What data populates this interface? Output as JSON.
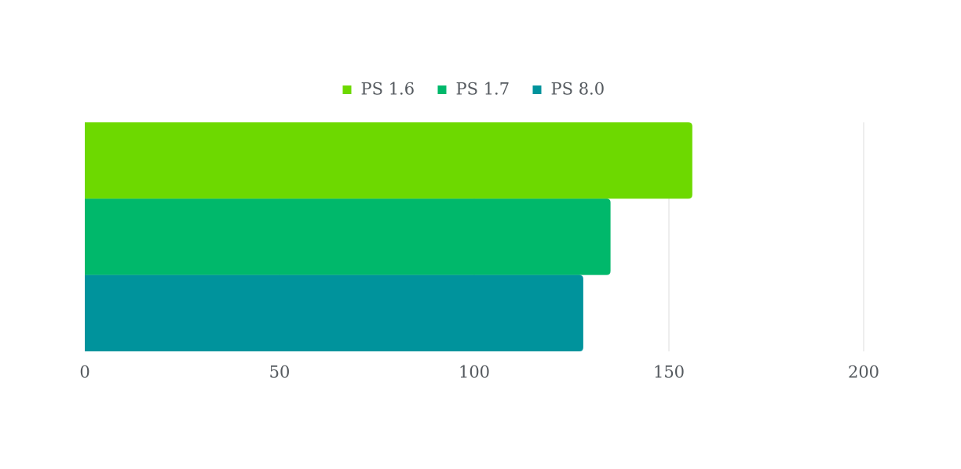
{
  "chart_data": {
    "type": "hbar",
    "categories": [
      null
    ],
    "series": [
      {
        "name": "PS 1.6",
        "color": "#6dd900",
        "values": [
          156
        ]
      },
      {
        "name": "PS 1.7",
        "color": "#00b86b",
        "values": [
          135
        ]
      },
      {
        "name": "PS 8.0",
        "color": "#00939c",
        "values": [
          128
        ]
      }
    ],
    "xlim": [
      0,
      200
    ],
    "xticks": [
      0,
      50,
      100,
      150,
      200
    ],
    "grid": true,
    "legend": "top"
  }
}
